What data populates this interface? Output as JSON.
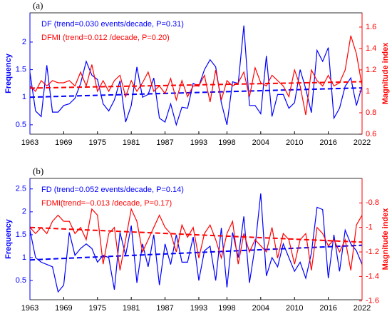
{
  "chart_data": [
    {
      "type": "line",
      "label": "(a)",
      "ylabel": "Frequency",
      "y2label": "Magnitude index",
      "x": [
        1963,
        1964,
        1965,
        1966,
        1967,
        1968,
        1969,
        1970,
        1971,
        1972,
        1973,
        1974,
        1975,
        1976,
        1977,
        1978,
        1979,
        1980,
        1981,
        1982,
        1983,
        1984,
        1985,
        1986,
        1987,
        1988,
        1989,
        1990,
        1991,
        1992,
        1993,
        1994,
        1995,
        1996,
        1997,
        1998,
        1999,
        2000,
        2001,
        2002,
        2003,
        2004,
        2005,
        2006,
        2007,
        2008,
        2009,
        2010,
        2011,
        2012,
        2013,
        2014,
        2015,
        2016,
        2017,
        2018,
        2019,
        2020,
        2021,
        2022
      ],
      "xlim": [
        1963,
        2022
      ],
      "xticks": [
        1963,
        1969,
        1975,
        1981,
        1987,
        1993,
        1998,
        2004,
        2010,
        2016,
        2022
      ],
      "ylim": [
        0.33,
        2.53
      ],
      "yticks": [
        0.5,
        1,
        1.5,
        2
      ],
      "y2lim": [
        0.6,
        1.733
      ],
      "y2ticks": [
        0.6,
        0.8,
        1,
        1.2,
        1.4,
        1.6
      ],
      "series": [
        {
          "name": "DF (trend=0.030 events/decade, P=0.31)",
          "color": "#0000ff",
          "trend": [
            1.0,
            1.17
          ],
          "values": [
            1.45,
            0.75,
            0.65,
            1.58,
            0.73,
            0.73,
            0.85,
            0.88,
            0.98,
            1.25,
            1.65,
            1.4,
            1.32,
            0.88,
            0.75,
            0.95,
            1.3,
            0.55,
            0.85,
            1.55,
            1.0,
            1.05,
            1.35,
            0.62,
            0.55,
            0.88,
            0.5,
            0.82,
            0.8,
            1.25,
            1.2,
            1.5,
            1.68,
            1.55,
            0.9,
            0.5,
            1.28,
            1.25,
            2.3,
            0.85,
            0.85,
            0.7,
            1.75,
            0.65,
            1.05,
            1.05,
            0.8,
            0.9,
            1.5,
            1.15,
            0.72,
            1.85,
            1.65,
            1.9,
            0.62,
            0.8,
            1.2,
            1.35,
            0.85,
            1.2
          ]
        },
        {
          "name": "DFMI (trend=0.012 /decade, P=0.20)",
          "color": "#ff0000",
          "axis": "y2",
          "trend": [
            1.03,
            1.09
          ],
          "values": [
            1.05,
            1.0,
            1.1,
            1.05,
            1.1,
            1.08,
            1.08,
            1.1,
            1.05,
            1.18,
            1.05,
            1.25,
            1.0,
            1.1,
            1.0,
            1.1,
            1.15,
            0.95,
            1.1,
            1.0,
            1.08,
            1.18,
            1.0,
            1.05,
            0.98,
            1.12,
            0.92,
            1.1,
            0.95,
            1.05,
            1.05,
            1.15,
            0.9,
            1.2,
            0.92,
            1.1,
            1.05,
            1.08,
            1.18,
            0.95,
            1.22,
            1.08,
            1.05,
            1.15,
            1.1,
            1.05,
            0.95,
            1.2,
            1.05,
            0.78,
            1.2,
            1.1,
            1.05,
            1.15,
            1.05,
            1.08,
            1.2,
            1.52,
            1.35,
            1.05
          ]
        }
      ]
    },
    {
      "type": "line",
      "label": "(b)",
      "ylabel": "Frequency",
      "y2label": "Magnitude index",
      "x": [
        1963,
        1964,
        1965,
        1966,
        1967,
        1968,
        1969,
        1970,
        1971,
        1972,
        1973,
        1974,
        1975,
        1976,
        1977,
        1978,
        1979,
        1980,
        1981,
        1982,
        1983,
        1984,
        1985,
        1986,
        1987,
        1988,
        1989,
        1990,
        1991,
        1992,
        1993,
        1994,
        1995,
        1996,
        1997,
        1998,
        1999,
        2000,
        2001,
        2002,
        2003,
        2004,
        2005,
        2006,
        2007,
        2008,
        2009,
        2010,
        2011,
        2012,
        2013,
        2014,
        2015,
        2016,
        2017,
        2018,
        2019,
        2020,
        2021,
        2022
      ],
      "xlim": [
        1963,
        2022
      ],
      "xticks": [
        1963,
        1969,
        1975,
        1981,
        1987,
        1993,
        1998,
        2004,
        2010,
        2016,
        2022
      ],
      "ylim": [
        0.08,
        2.73
      ],
      "yticks": [
        0.5,
        1,
        1.5,
        2,
        2.5
      ],
      "y2lim": [
        -1.59,
        -0.6
      ],
      "y2ticks": [
        -1.6,
        -1.4,
        -1.2,
        -1,
        -0.8
      ],
      "series": [
        {
          "name": "FD (trend=0.052 events/decade, P=0.14)",
          "color": "#0000ff",
          "trend": [
            0.95,
            1.27
          ],
          "values": [
            1.6,
            1.0,
            0.9,
            0.85,
            0.8,
            0.25,
            0.4,
            1.55,
            1.05,
            1.2,
            1.3,
            1.2,
            0.9,
            1.05,
            1.0,
            0.3,
            1.55,
            1.05,
            1.7,
            0.45,
            1.3,
            0.8,
            1.5,
            0.4,
            1.3,
            0.85,
            1.5,
            0.9,
            0.9,
            1.45,
            0.5,
            1.15,
            1.25,
            0.5,
            1.65,
            0.35,
            1.55,
            1.0,
            1.9,
            0.45,
            1.25,
            2.4,
            0.6,
            1.0,
            0.8,
            1.3,
            1.0,
            0.7,
            0.9,
            0.55,
            1.1,
            2.1,
            2.05,
            0.55,
            1.5,
            0.7,
            1.6,
            1.3,
            1.15,
            0.85
          ]
        },
        {
          "name": "FDMI(trend=−0.013 /decade, P=0.17)",
          "color": "#ff0000",
          "axis": "y2",
          "trend": [
            -1.0,
            -1.12
          ],
          "values": [
            -1.0,
            -1.05,
            -1.0,
            -1.05,
            -0.95,
            -0.9,
            -0.95,
            -0.95,
            -1.05,
            -1.0,
            -1.1,
            -0.85,
            -0.9,
            -1.3,
            -1.05,
            -1.0,
            -1.35,
            -1.1,
            -0.85,
            -0.95,
            -1.2,
            -1.1,
            -1.0,
            -0.9,
            -1.0,
            -1.05,
            -1.2,
            -0.98,
            -1.08,
            -1.0,
            -1.25,
            -1.05,
            -0.98,
            -1.1,
            -1.25,
            -1.05,
            -0.95,
            -1.3,
            -1.05,
            -1.2,
            -1.1,
            -1.15,
            -1.2,
            -1.0,
            -1.25,
            -1.05,
            -1.1,
            -1.3,
            -1.1,
            -1.05,
            -1.35,
            -1.0,
            -1.05,
            -1.15,
            -1.1,
            -1.2,
            -1.1,
            -1.35,
            -0.98,
            -0.9
          ]
        }
      ]
    }
  ]
}
